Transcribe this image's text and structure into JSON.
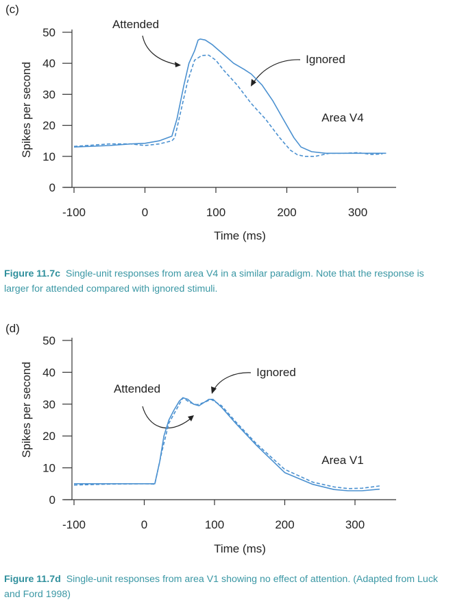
{
  "colors": {
    "curve": "#4a90d0",
    "axis": "#333333",
    "caption": "#3a97a4"
  },
  "panels": [
    {
      "letter": "(c)",
      "area_label": "Area V4",
      "attended_label": "Attended",
      "ignored_label": "Ignored",
      "caption_fig": "Figure 11.7c",
      "caption_text": "Single-unit responses from area V4 in a similar paradigm. Note that the response is larger for attended compared with ignored stimuli."
    },
    {
      "letter": "(d)",
      "area_label": "Area V1",
      "attended_label": "Attended",
      "ignored_label": "Ignored",
      "caption_fig": "Figure 11.7d",
      "caption_text": "Single-unit responses from area V1 showing no effect of attention. (Adapted from Luck and Ford 1998)"
    }
  ],
  "chart_data": [
    {
      "type": "line",
      "title": "",
      "xlabel": "Time (ms)",
      "ylabel": "Spikes per second",
      "xlim": [
        -100,
        340
      ],
      "ylim": [
        0,
        50
      ],
      "xticks": [
        -100,
        0,
        100,
        200,
        300
      ],
      "yticks": [
        0,
        10,
        20,
        30,
        40,
        50
      ],
      "grid": false,
      "series": [
        {
          "name": "Attended",
          "style": "solid",
          "x": [
            -100,
            -50,
            -20,
            0,
            20,
            38,
            45,
            55,
            62,
            70,
            75,
            78,
            85,
            95,
            110,
            125,
            140,
            150,
            165,
            180,
            195,
            210,
            220,
            235,
            255,
            280,
            310,
            340
          ],
          "y": [
            13,
            13.5,
            14,
            14.2,
            15,
            16.5,
            22,
            33,
            40,
            44,
            47.5,
            47.8,
            47.5,
            46,
            43,
            40,
            38,
            36.5,
            33,
            28,
            22,
            16,
            13,
            11.5,
            11,
            11,
            11,
            11
          ]
        },
        {
          "name": "Ignored",
          "style": "dashed",
          "x": [
            -100,
            -50,
            -20,
            0,
            20,
            38,
            42,
            50,
            60,
            70,
            80,
            90,
            100,
            110,
            130,
            150,
            170,
            190,
            205,
            215,
            225,
            240,
            260,
            280,
            300,
            320,
            335
          ],
          "y": [
            13.2,
            14,
            14,
            13.5,
            14,
            15,
            16,
            24,
            34,
            41,
            42.5,
            42.6,
            41,
            38,
            33,
            27,
            22,
            16,
            12,
            10.5,
            10,
            10,
            11,
            11,
            11.2,
            10.6,
            10.8
          ]
        }
      ]
    },
    {
      "type": "line",
      "title": "",
      "xlabel": "Time (ms)",
      "ylabel": "Spikes per second",
      "xlim": [
        -100,
        340
      ],
      "ylim": [
        0,
        50
      ],
      "xticks": [
        -100,
        0,
        100,
        200,
        300
      ],
      "yticks": [
        0,
        10,
        20,
        30,
        40,
        50
      ],
      "grid": false,
      "series": [
        {
          "name": "Attended",
          "style": "solid",
          "x": [
            -100,
            -50,
            0,
            15,
            22,
            28,
            35,
            42,
            50,
            55,
            62,
            70,
            78,
            85,
            92,
            98,
            110,
            130,
            160,
            200,
            240,
            270,
            290,
            310,
            335
          ],
          "y": [
            5,
            5,
            5,
            5,
            12,
            20,
            25,
            28,
            31,
            32,
            31.5,
            30,
            29.5,
            30.5,
            31.5,
            31.5,
            29,
            24,
            17,
            8.5,
            4.8,
            3.2,
            2.8,
            2.8,
            3.3
          ]
        },
        {
          "name": "Ignored",
          "style": "dashed",
          "x": [
            -100,
            -50,
            0,
            15,
            25,
            35,
            45,
            55,
            65,
            75,
            85,
            95,
            110,
            130,
            160,
            200,
            240,
            270,
            290,
            310,
            335
          ],
          "y": [
            4.6,
            4.9,
            5,
            4.9,
            15,
            24,
            28,
            32,
            30.5,
            29.8,
            30.5,
            31.5,
            29.5,
            24.5,
            17.5,
            9.5,
            5.5,
            4,
            3.5,
            3.6,
            4.3
          ]
        }
      ]
    }
  ]
}
